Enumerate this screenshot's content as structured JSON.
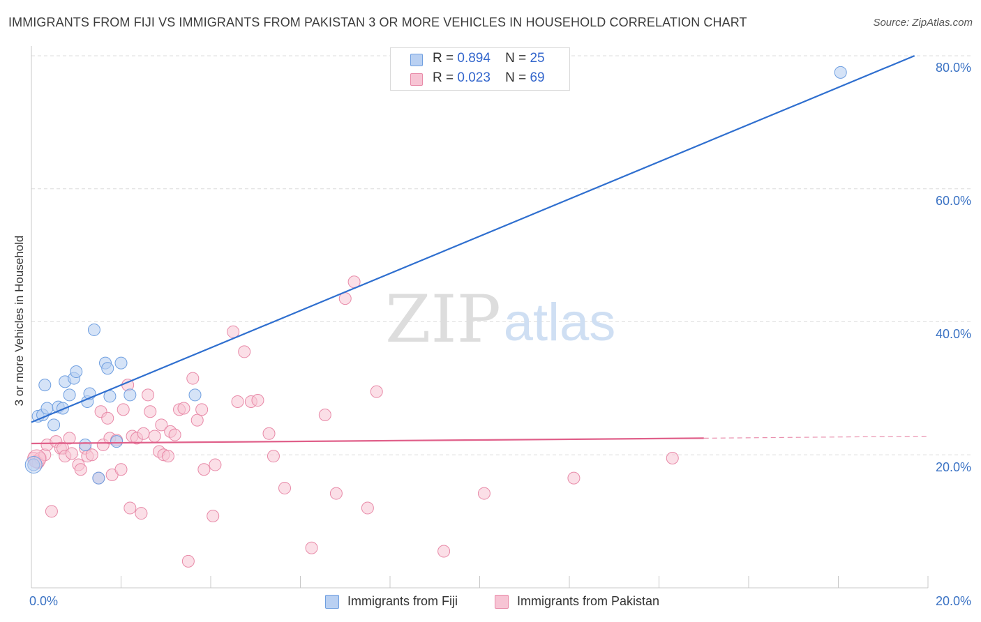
{
  "header": {
    "title": "IMMIGRANTS FROM FIJI VS IMMIGRANTS FROM PAKISTAN 3 OR MORE VEHICLES IN HOUSEHOLD CORRELATION CHART",
    "source": "Source: ZipAtlas.com"
  },
  "watermark": {
    "zip": "ZIP",
    "atlas": "atlas"
  },
  "legend": {
    "fiji": {
      "r_label": "R =",
      "r_value": "0.894",
      "n_label": "N =",
      "n_value": "25"
    },
    "pakistan": {
      "r_label": "R =",
      "r_value": "0.023",
      "n_label": "N =",
      "n_value": "69"
    }
  },
  "chart_data": {
    "type": "scatter",
    "title": "IMMIGRANTS FROM FIJI VS IMMIGRANTS FROM PAKISTAN 3 OR MORE VEHICLES IN HOUSEHOLD CORRELATION CHART",
    "xlabel": "",
    "ylabel": "3 or more Vehicles in Household",
    "xlim": [
      0,
      20
    ],
    "ylim": [
      0,
      80
    ],
    "x_tick_labels": [
      "0.0%",
      "20.0%"
    ],
    "y_ticks": [
      20,
      40,
      60,
      80
    ],
    "y_tick_labels": [
      "20.0%",
      "40.0%",
      "60.0%",
      "80.0%"
    ],
    "series": [
      {
        "name": "Immigrants from Fiji",
        "color": "#6f9fe0",
        "fill": "#b9d0f2",
        "trend_color": "#2f6fcf",
        "trend": {
          "x0": 0,
          "y0": 24.9,
          "x1": 19.7,
          "y1": 80
        },
        "points": [
          [
            0.05,
            18.5
          ],
          [
            0.15,
            25.8
          ],
          [
            0.25,
            26.0
          ],
          [
            0.3,
            30.5
          ],
          [
            0.35,
            27.0
          ],
          [
            0.5,
            24.5
          ],
          [
            0.6,
            27.2
          ],
          [
            0.7,
            27.0
          ],
          [
            0.75,
            31.0
          ],
          [
            0.85,
            29.0
          ],
          [
            0.95,
            31.5
          ],
          [
            1.0,
            32.5
          ],
          [
            1.2,
            21.5
          ],
          [
            1.25,
            28.0
          ],
          [
            1.3,
            29.2
          ],
          [
            1.4,
            38.8
          ],
          [
            1.5,
            16.5
          ],
          [
            1.65,
            33.8
          ],
          [
            1.7,
            33.0
          ],
          [
            1.75,
            28.8
          ],
          [
            1.9,
            22.0
          ],
          [
            2.0,
            33.8
          ],
          [
            2.2,
            29.0
          ],
          [
            3.65,
            29.0
          ],
          [
            18.05,
            77.5
          ]
        ]
      },
      {
        "name": "Immigrants from Pakistan",
        "color": "#e88aa8",
        "fill": "#f7c4d4",
        "trend_color": "#e0608a",
        "trend": {
          "x0": 0,
          "y0": 21.7,
          "x1": 15.0,
          "y1": 22.5,
          "x_dash_end": 20.0,
          "y_dash_end": 22.8
        },
        "points": [
          [
            0.05,
            19.5
          ],
          [
            0.1,
            19.0
          ],
          [
            0.15,
            18.8
          ],
          [
            0.2,
            19.5
          ],
          [
            0.3,
            20.0
          ],
          [
            0.35,
            21.5
          ],
          [
            0.45,
            11.5
          ],
          [
            0.55,
            22.0
          ],
          [
            0.65,
            21.0
          ],
          [
            0.7,
            21.0
          ],
          [
            0.75,
            19.8
          ],
          [
            0.85,
            22.5
          ],
          [
            0.9,
            20.2
          ],
          [
            1.05,
            18.5
          ],
          [
            1.1,
            17.8
          ],
          [
            1.2,
            21.0
          ],
          [
            1.25,
            19.8
          ],
          [
            1.35,
            20.0
          ],
          [
            1.5,
            16.5
          ],
          [
            1.55,
            26.5
          ],
          [
            1.6,
            21.5
          ],
          [
            1.7,
            25.5
          ],
          [
            1.75,
            22.5
          ],
          [
            1.8,
            17.0
          ],
          [
            1.9,
            22.2
          ],
          [
            2.0,
            17.8
          ],
          [
            2.05,
            26.8
          ],
          [
            2.15,
            30.5
          ],
          [
            2.2,
            12.0
          ],
          [
            2.25,
            22.8
          ],
          [
            2.35,
            22.5
          ],
          [
            2.45,
            11.2
          ],
          [
            2.5,
            23.2
          ],
          [
            2.6,
            29.0
          ],
          [
            2.65,
            26.5
          ],
          [
            2.75,
            22.8
          ],
          [
            2.85,
            20.5
          ],
          [
            2.9,
            24.5
          ],
          [
            2.95,
            20.0
          ],
          [
            3.05,
            19.8
          ],
          [
            3.1,
            23.5
          ],
          [
            3.2,
            23.0
          ],
          [
            3.3,
            26.8
          ],
          [
            3.4,
            27.0
          ],
          [
            3.5,
            4.0
          ],
          [
            3.6,
            31.5
          ],
          [
            3.7,
            25.2
          ],
          [
            3.8,
            26.8
          ],
          [
            3.85,
            17.8
          ],
          [
            4.05,
            10.8
          ],
          [
            4.1,
            18.5
          ],
          [
            4.5,
            38.5
          ],
          [
            4.6,
            28.0
          ],
          [
            4.75,
            35.5
          ],
          [
            4.9,
            28.0
          ],
          [
            5.05,
            28.2
          ],
          [
            5.3,
            23.2
          ],
          [
            5.4,
            19.8
          ],
          [
            5.65,
            15.0
          ],
          [
            6.25,
            6.0
          ],
          [
            6.55,
            26.0
          ],
          [
            6.8,
            14.2
          ],
          [
            7.0,
            43.5
          ],
          [
            7.2,
            46.0
          ],
          [
            7.5,
            12.0
          ],
          [
            7.7,
            29.5
          ],
          [
            9.2,
            5.5
          ],
          [
            10.1,
            14.2
          ],
          [
            12.1,
            16.5
          ],
          [
            14.3,
            19.5
          ]
        ]
      }
    ]
  },
  "bottom_legend": {
    "fiji_label": "Immigrants from Fiji",
    "pakistan_label": "Immigrants from Pakistan"
  }
}
